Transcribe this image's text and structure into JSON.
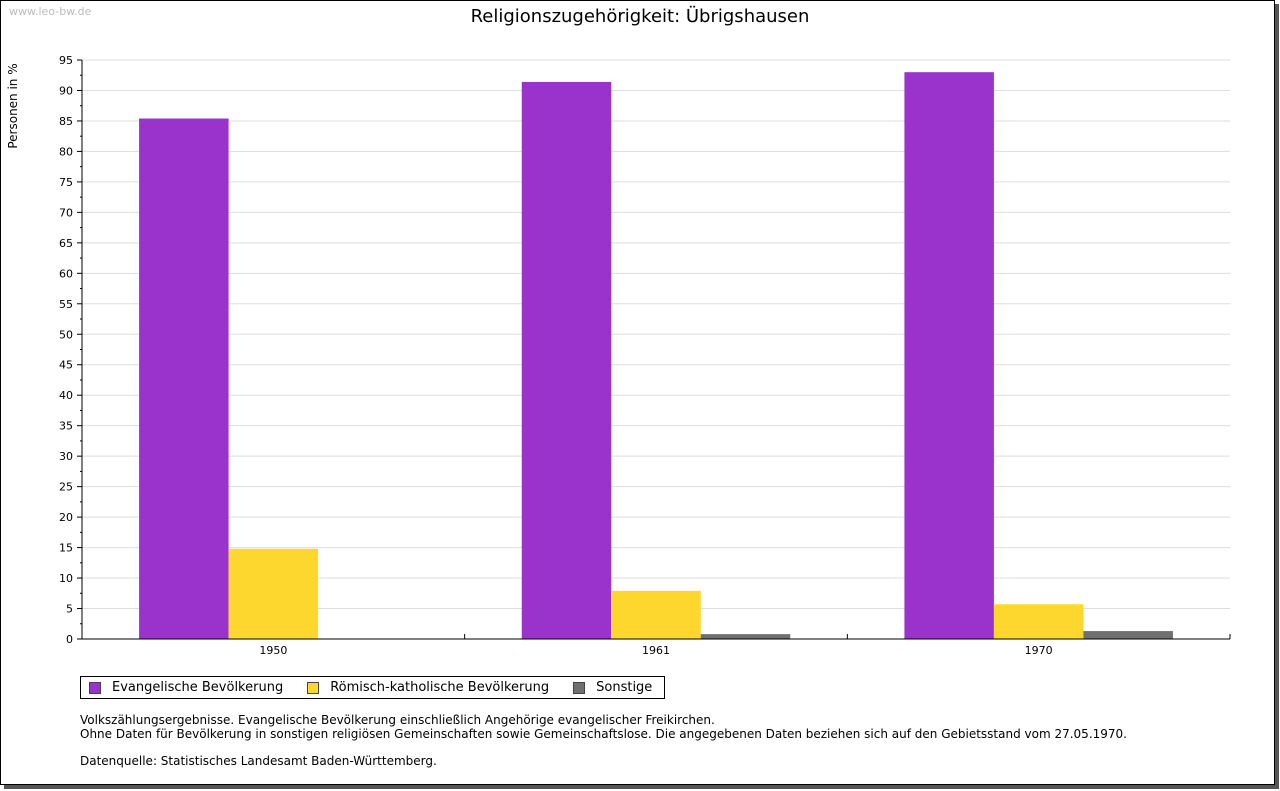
{
  "watermark": "www.leo-bw.de",
  "chart_data": {
    "type": "bar",
    "title": "Religionszugehörigkeit: Übrigshausen",
    "xlabel": "",
    "ylabel": "Personen in %",
    "ylim": [
      0,
      95
    ],
    "yticks": [
      "0",
      "5",
      "10",
      "15",
      "20",
      "25",
      "30",
      "35",
      "40",
      "45",
      "50",
      "55",
      "60",
      "65",
      "70",
      "75",
      "80",
      "85",
      "90",
      "95"
    ],
    "categories": [
      "1950",
      "1961",
      "1970"
    ],
    "grid": true,
    "legend_position": "bottom-left",
    "series": [
      {
        "name": "Evangelische Bevölkerung",
        "color": "#9933cc",
        "values": [
          85.4,
          91.4,
          93.0
        ]
      },
      {
        "name": "Römisch-katholische Bevölkerung",
        "color": "#fdd72e",
        "values": [
          14.8,
          7.9,
          5.7
        ]
      },
      {
        "name": "Sonstige",
        "color": "#707070",
        "values": [
          null,
          0.8,
          1.3
        ]
      }
    ]
  },
  "notes": {
    "line1": "Volkszählungsergebnisse. Evangelische Bevölkerung einschließlich Angehörige evangelischer Freikirchen.",
    "line2": "Ohne Daten für Bevölkerung in sonstigen religiösen Gemeinschaften sowie Gemeinschaftslose. Die angegebenen Daten beziehen sich auf den Gebietsstand vom 27.05.1970.",
    "source": "Datenquelle: Statistisches Landesamt Baden-Württemberg."
  }
}
